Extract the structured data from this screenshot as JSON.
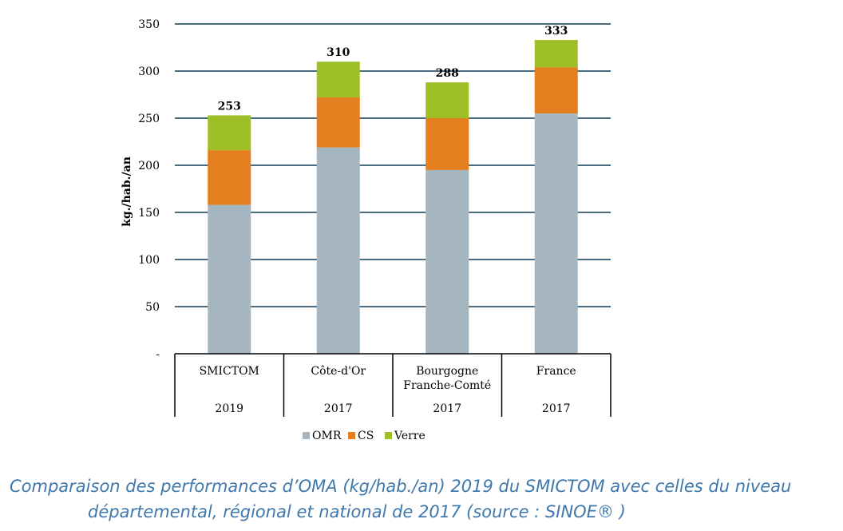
{
  "chart_data": {
    "type": "bar",
    "stacked": true,
    "categories": [
      "SMICTOM",
      "Côte-d'Or",
      "Bourgogne Franche-Comté",
      "France"
    ],
    "category_lines": [
      [
        "SMICTOM"
      ],
      [
        "Côte-d'Or"
      ],
      [
        "Bourgogne",
        "Franche-Comté"
      ],
      [
        "France"
      ]
    ],
    "years": [
      "2019",
      "2017",
      "2017",
      "2017"
    ],
    "series": [
      {
        "name": "OMR",
        "color": "#a5b6c1",
        "values": [
          158,
          219,
          195,
          255
        ]
      },
      {
        "name": "CS",
        "color": "#e57e1e",
        "values": [
          58,
          53,
          55,
          49
        ]
      },
      {
        "name": "Verre",
        "color": "#9ebf25",
        "values": [
          37,
          38,
          38,
          29
        ]
      }
    ],
    "totals": [
      253,
      310,
      288,
      333
    ],
    "ylabel": "kg./hab./an",
    "ylim": [
      0,
      350
    ],
    "yticks": [
      0,
      50,
      100,
      150,
      200,
      250,
      300,
      350
    ],
    "ytick_labels": [
      "-",
      "50",
      "100",
      "150",
      "200",
      "250",
      "300",
      "350"
    ],
    "grid": true,
    "gridline_color": "#4a6b80",
    "legend_position": "bottom-center"
  },
  "caption": {
    "line1": "Comparaison des performances d’OMA (kg/hab./an) 2019 du SMICTOM avec celles du niveau",
    "line2": "départemental, régional et national de 2017 (source : SINOE® )"
  }
}
